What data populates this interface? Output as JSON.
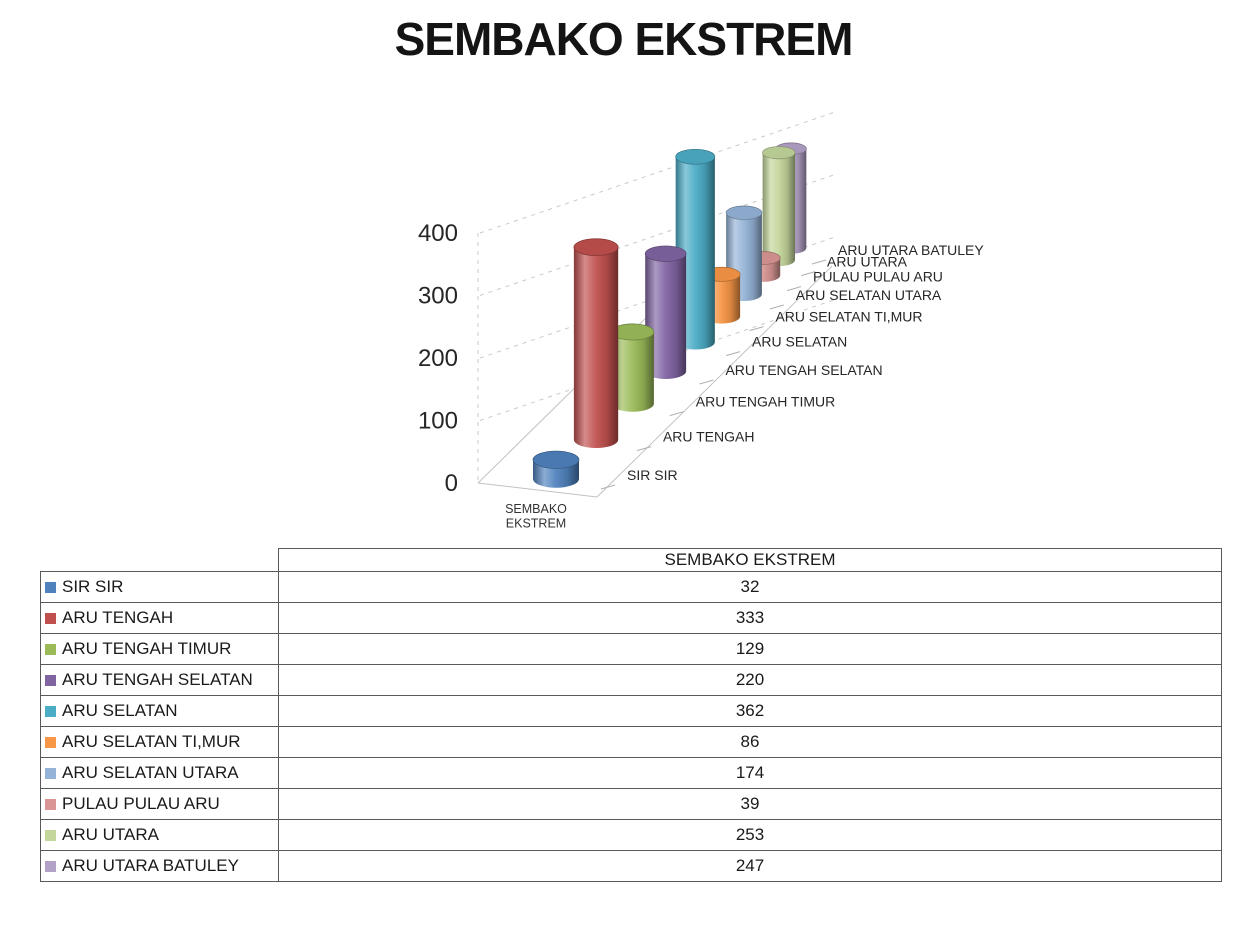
{
  "title": "SEMBAKO EKSTREM",
  "chart_data": {
    "type": "bar",
    "variant": "3d-cylinder",
    "title": "SEMBAKO EKSTREM",
    "categories": [
      "SIR SIR",
      "ARU TENGAH",
      "ARU TENGAH TIMUR",
      "ARU TENGAH SELATAN",
      "ARU SELATAN",
      "ARU SELATAN TI,MUR",
      "ARU SELATAN UTARA",
      "PULAU PULAU ARU",
      "ARU UTARA",
      "ARU UTARA BATULEY"
    ],
    "values": [
      32,
      333,
      129,
      220,
      362,
      86,
      174,
      39,
      253,
      247
    ],
    "colors": [
      "#4F81BD",
      "#C0504D",
      "#9BBB59",
      "#8064A2",
      "#4BACC6",
      "#F79646",
      "#95B3D7",
      "#D99694",
      "#C3D69B",
      "#B3A2C7"
    ],
    "value_axis": {
      "min": 0,
      "max": 400,
      "ticks": [
        0,
        100,
        200,
        300,
        400
      ]
    },
    "category_axis_caption_lines": [
      "SEMBAKO",
      "EKSTREM"
    ],
    "grid": "dashed",
    "legend_position": "table-left"
  },
  "table": {
    "value_column_header": "SEMBAKO EKSTREM",
    "rows": [
      {
        "label": "SIR SIR",
        "value": "32"
      },
      {
        "label": "ARU TENGAH",
        "value": "333"
      },
      {
        "label": "ARU TENGAH TIMUR",
        "value": "129"
      },
      {
        "label": "ARU TENGAH SELATAN",
        "value": "220"
      },
      {
        "label": "ARU SELATAN",
        "value": "362"
      },
      {
        "label": "ARU SELATAN TI,MUR",
        "value": "86"
      },
      {
        "label": "ARU SELATAN UTARA",
        "value": "174"
      },
      {
        "label": "PULAU PULAU ARU",
        "value": "39"
      },
      {
        "label": "ARU UTARA",
        "value": "253"
      },
      {
        "label": "ARU UTARA BATULEY",
        "value": "247"
      }
    ]
  }
}
